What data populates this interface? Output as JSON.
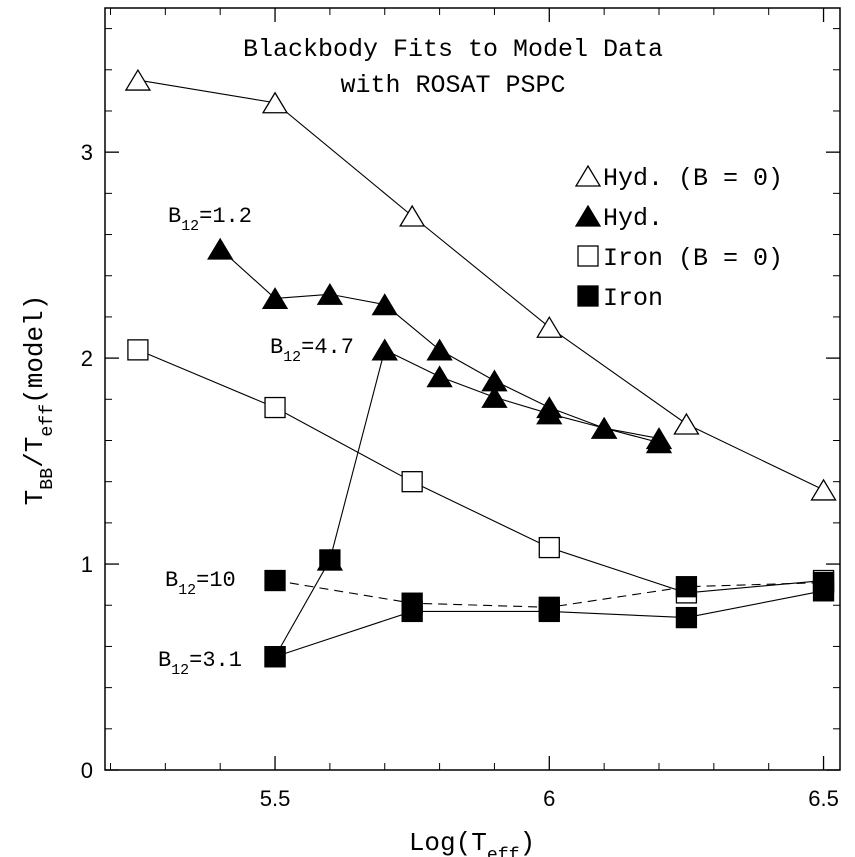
{
  "chart_data": {
    "type": "line",
    "title": [
      "Blackbody Fits to Model Data",
      "with ROSAT PSPC"
    ],
    "x_label": [
      {
        "text": "Log(T"
      },
      {
        "text": "eff",
        "sub": true
      },
      {
        "text": ")"
      }
    ],
    "y_label": [
      {
        "text": "T"
      },
      {
        "text": "BB",
        "sub": true
      },
      {
        "text": "/T"
      },
      {
        "text": "eff",
        "sub": true
      },
      {
        "text": "(model)"
      }
    ],
    "xlim": [
      5.19,
      6.53
    ],
    "ylim": [
      0,
      3.7
    ],
    "xticks": [
      5.5,
      6,
      6.5
    ],
    "yticks": [
      0,
      1,
      2,
      3
    ],
    "xticks_minor": [
      5.2,
      5.3,
      5.4,
      5.6,
      5.7,
      5.8,
      5.9,
      6.1,
      6.2,
      6.3,
      6.4
    ],
    "yticks_minor": [
      0.2,
      0.4,
      0.6,
      0.8,
      1.2,
      1.4,
      1.6,
      1.8,
      2.2,
      2.4,
      2.6,
      2.8,
      3.2,
      3.4,
      3.6
    ],
    "series": [
      {
        "name": "Hyd. (B = 0)",
        "marker": "triangle",
        "filled": false,
        "color": "#000000",
        "curves": [
          {
            "x": [
              5.25,
              5.5,
              5.75,
              6.0,
              6.25,
              6.5
            ],
            "y": [
              3.35,
              3.24,
              2.69,
              2.15,
              1.68,
              1.36
            ],
            "dashed": false
          }
        ]
      },
      {
        "name": "Hyd.",
        "marker": "triangle",
        "filled": true,
        "color": "#000000",
        "curves": [
          {
            "x": [
              5.4,
              5.5,
              5.6,
              5.7,
              5.8,
              5.9,
              6.0,
              6.1,
              6.2
            ],
            "y": [
              2.53,
              2.29,
              2.31,
              2.26,
              2.04,
              1.89,
              1.76,
              1.66,
              1.61
            ],
            "dashed": false
          },
          {
            "x": [
              5.7,
              5.8,
              5.9,
              6.0,
              6.1,
              6.2
            ],
            "y": [
              2.04,
              1.91,
              1.81,
              1.73,
              1.66,
              1.59
            ],
            "dashed": false
          },
          {
            "x": [
              5.6,
              5.7
            ],
            "y": [
              1.02,
              2.04
            ],
            "dashed": false
          }
        ]
      },
      {
        "name": "Iron (B = 0)",
        "marker": "square",
        "filled": false,
        "color": "#000000",
        "curves": [
          {
            "x": [
              5.25,
              5.5,
              5.75,
              6.0,
              6.25,
              6.5
            ],
            "y": [
              2.04,
              1.76,
              1.4,
              1.08,
              0.86,
              0.92
            ],
            "dashed": false
          }
        ]
      },
      {
        "name": "Iron",
        "marker": "square",
        "filled": true,
        "color": "#000000",
        "curves": [
          {
            "x": [
              5.5,
              5.75,
              6.0,
              6.25,
              6.5
            ],
            "y": [
              0.92,
              0.81,
              0.79,
              0.89,
              0.91
            ],
            "dashed": true
          },
          {
            "x": [
              5.5,
              5.6
            ],
            "y": [
              0.55,
              1.02
            ],
            "dashed": false
          },
          {
            "x": [
              5.5,
              5.75,
              6.0,
              6.25,
              6.5
            ],
            "y": [
              0.55,
              0.77,
              0.77,
              0.74,
              0.87
            ],
            "dashed": false
          }
        ]
      }
    ],
    "annotations": [
      {
        "base": "B",
        "sub": "12",
        "tail": "=1.2"
      },
      {
        "base": "B",
        "sub": "12",
        "tail": "=4.7"
      },
      {
        "base": "B",
        "sub": "12",
        "tail": "=10"
      },
      {
        "base": "B",
        "sub": "12",
        "tail": "=3.1"
      }
    ]
  }
}
